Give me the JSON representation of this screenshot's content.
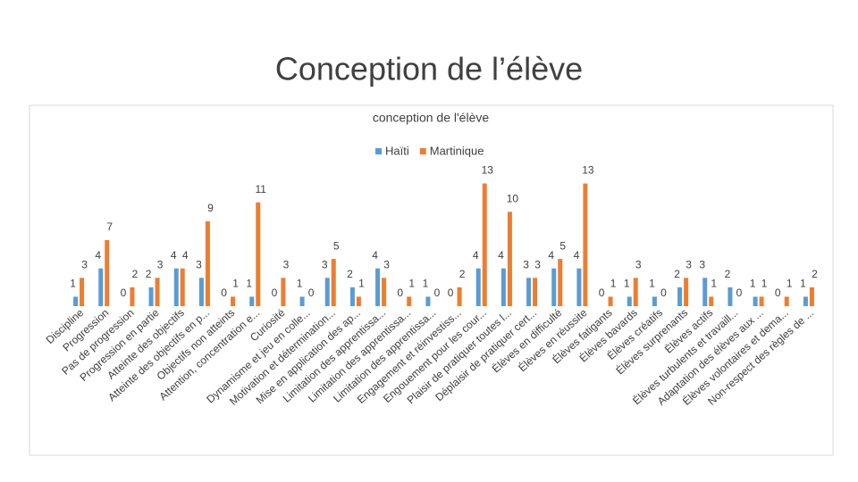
{
  "title": "Conception de l’élève",
  "chart_data": {
    "type": "bar",
    "title": "conception de l'élève",
    "categories": [
      "Discipline",
      "Progression",
      "Pas de progression",
      "Progression en partie",
      "Atteinte des objectifs",
      "Atteinte des objectifs en p...",
      "Objectifs non atteints",
      "Attention, concentration e...",
      "Curiosité",
      "Dynamisme et jeu en colle...",
      "Motivation et détermination...",
      "Mise en application des ap...",
      "Limitation des apprentissa...",
      "Limitation des apprentissa...",
      "Limitation des apprentissa...",
      "Engagement et réinvestiss...",
      "Engouement pour les cour...",
      "Plaisir de pratiquer toutes l...",
      "Déplaisir de pratiquer cert...",
      "Élèves en difficulté",
      "Élèves en réussite",
      "Élèves fatigants",
      "Élèves bavards",
      "Élèves créatifs",
      "Élèves surprenants",
      "Élèves actifs",
      "Élèves turbulents et travaill...",
      "Adaptation des élèves aux ...",
      "Élèves volontaires et dema...",
      "Non-respect des règles de ..."
    ],
    "series": [
      {
        "name": "Haïti",
        "color": "#5b9bd5",
        "values": [
          1,
          4,
          0,
          2,
          4,
          3,
          0,
          1,
          0,
          1,
          3,
          2,
          4,
          0,
          1,
          0,
          4,
          4,
          3,
          4,
          4,
          0,
          1,
          1,
          2,
          3,
          2,
          1,
          0,
          1
        ]
      },
      {
        "name": "Martinique",
        "color": "#ed7d31",
        "values": [
          3,
          7,
          2,
          3,
          4,
          9,
          1,
          11,
          3,
          0,
          5,
          1,
          3,
          1,
          0,
          2,
          13,
          10,
          3,
          5,
          13,
          1,
          3,
          0,
          3,
          1,
          0,
          1,
          1,
          2
        ]
      }
    ],
    "ylim": [
      0,
      14
    ],
    "legend": "top"
  }
}
